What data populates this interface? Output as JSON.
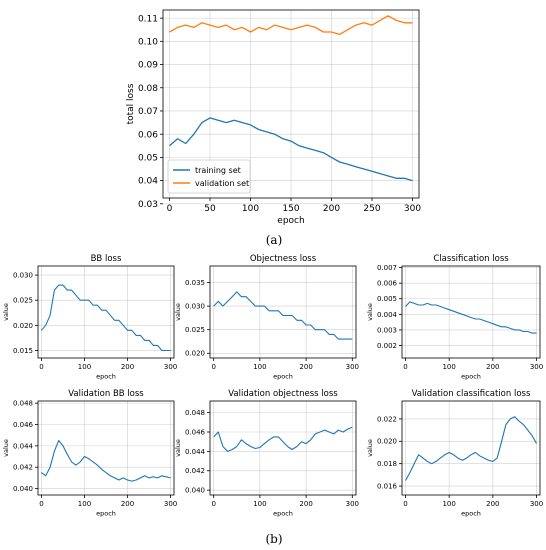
{
  "captions": {
    "a": "(a)",
    "b": "(b)"
  },
  "colors": {
    "training": "#1f77b4",
    "validation": "#ff7f0e",
    "axis": "#000000",
    "grid": "#b0b0b0"
  },
  "chart_data": [
    {
      "id": "main",
      "type": "line",
      "title": "",
      "xlabel": "epoch",
      "ylabel": "total loss",
      "xlim": [
        -8,
        308
      ],
      "ylim": [
        0.0325,
        0.1135
      ],
      "xticks": [
        0,
        50,
        100,
        150,
        200,
        250,
        300
      ],
      "yticks": [
        0.03,
        0.04,
        0.05,
        0.06,
        0.07,
        0.08,
        0.09,
        0.1,
        0.11
      ],
      "ytick_labels": [
        "0.03",
        "0.04",
        "0.05",
        "0.06",
        "0.07",
        "0.08",
        "0.09",
        "0.10",
        "0.11"
      ],
      "grid": true,
      "legend": "lower-left",
      "series": [
        {
          "name": "training set",
          "color": "#1f77b4",
          "x": [
            0,
            10,
            20,
            30,
            40,
            50,
            60,
            70,
            80,
            90,
            100,
            110,
            120,
            130,
            140,
            150,
            160,
            170,
            180,
            190,
            200,
            210,
            220,
            230,
            240,
            250,
            260,
            270,
            280,
            290,
            300
          ],
          "y": [
            0.055,
            0.058,
            0.056,
            0.06,
            0.065,
            0.067,
            0.066,
            0.065,
            0.066,
            0.065,
            0.064,
            0.062,
            0.061,
            0.06,
            0.058,
            0.057,
            0.055,
            0.054,
            0.053,
            0.052,
            0.05,
            0.048,
            0.047,
            0.046,
            0.045,
            0.044,
            0.043,
            0.042,
            0.041,
            0.041,
            0.04
          ]
        },
        {
          "name": "validation set",
          "color": "#ff7f0e",
          "x": [
            0,
            10,
            20,
            30,
            40,
            50,
            60,
            70,
            80,
            90,
            100,
            110,
            120,
            130,
            140,
            150,
            160,
            170,
            180,
            190,
            200,
            210,
            220,
            230,
            240,
            250,
            260,
            270,
            280,
            290,
            300
          ],
          "y": [
            0.104,
            0.106,
            0.107,
            0.106,
            0.108,
            0.107,
            0.106,
            0.107,
            0.105,
            0.106,
            0.104,
            0.106,
            0.105,
            0.107,
            0.106,
            0.105,
            0.106,
            0.107,
            0.106,
            0.104,
            0.104,
            0.103,
            0.105,
            0.107,
            0.108,
            0.107,
            0.109,
            0.111,
            0.109,
            0.108,
            0.108
          ]
        }
      ]
    },
    {
      "id": "bb",
      "type": "line",
      "title": "BB loss",
      "xlabel": "epoch",
      "ylabel": "value",
      "xlim": [
        -8,
        308
      ],
      "ylim": [
        0.0135,
        0.0318
      ],
      "xticks": [
        0,
        100,
        200,
        300
      ],
      "yticks": [
        0.015,
        0.02,
        0.025,
        0.03
      ],
      "ytick_labels": [
        "0.015",
        "0.020",
        "0.025",
        "0.030"
      ],
      "grid": true,
      "series": [
        {
          "color": "#1f77b4",
          "x": [
            0,
            10,
            20,
            30,
            40,
            50,
            60,
            70,
            80,
            90,
            100,
            110,
            120,
            130,
            140,
            150,
            160,
            170,
            180,
            190,
            200,
            210,
            220,
            230,
            240,
            250,
            260,
            270,
            280,
            290,
            300
          ],
          "y": [
            0.019,
            0.02,
            0.022,
            0.027,
            0.028,
            0.028,
            0.027,
            0.027,
            0.026,
            0.025,
            0.025,
            0.025,
            0.024,
            0.024,
            0.023,
            0.023,
            0.022,
            0.021,
            0.021,
            0.02,
            0.019,
            0.019,
            0.018,
            0.018,
            0.017,
            0.017,
            0.016,
            0.016,
            0.015,
            0.015,
            0.015
          ]
        }
      ]
    },
    {
      "id": "obj",
      "type": "line",
      "title": "Objectness loss",
      "xlabel": "epoch",
      "ylabel": "value",
      "xlim": [
        -8,
        308
      ],
      "ylim": [
        0.019,
        0.0385
      ],
      "xticks": [
        0,
        100,
        200,
        300
      ],
      "yticks": [
        0.02,
        0.025,
        0.03,
        0.035
      ],
      "ytick_labels": [
        "0.020",
        "0.025",
        "0.030",
        "0.035"
      ],
      "grid": true,
      "series": [
        {
          "color": "#1f77b4",
          "x": [
            0,
            10,
            20,
            30,
            40,
            50,
            60,
            70,
            80,
            90,
            100,
            110,
            120,
            130,
            140,
            150,
            160,
            170,
            180,
            190,
            200,
            210,
            220,
            230,
            240,
            250,
            260,
            270,
            280,
            290,
            300
          ],
          "y": [
            0.03,
            0.031,
            0.03,
            0.031,
            0.032,
            0.033,
            0.032,
            0.032,
            0.031,
            0.03,
            0.03,
            0.03,
            0.029,
            0.029,
            0.029,
            0.028,
            0.028,
            0.028,
            0.027,
            0.027,
            0.026,
            0.026,
            0.025,
            0.025,
            0.025,
            0.024,
            0.024,
            0.023,
            0.023,
            0.023,
            0.023
          ]
        }
      ]
    },
    {
      "id": "cls",
      "type": "line",
      "title": "Classification loss",
      "xlabel": "epoch",
      "ylabel": "value",
      "xlim": [
        -8,
        308
      ],
      "ylim": [
        0.0012,
        0.0071
      ],
      "xticks": [
        0,
        100,
        200,
        300
      ],
      "yticks": [
        0.002,
        0.003,
        0.004,
        0.005,
        0.006,
        0.007
      ],
      "ytick_labels": [
        "0.002",
        "0.003",
        "0.004",
        "0.005",
        "0.006",
        "0.007"
      ],
      "grid": true,
      "series": [
        {
          "color": "#1f77b4",
          "x": [
            0,
            10,
            20,
            30,
            40,
            50,
            60,
            70,
            80,
            90,
            100,
            110,
            120,
            130,
            140,
            150,
            160,
            170,
            180,
            190,
            200,
            210,
            220,
            230,
            240,
            250,
            260,
            270,
            280,
            290,
            300
          ],
          "y": [
            0.0045,
            0.0048,
            0.0047,
            0.0046,
            0.0046,
            0.0047,
            0.0046,
            0.0046,
            0.0045,
            0.0044,
            0.0043,
            0.0042,
            0.0041,
            0.004,
            0.0039,
            0.0038,
            0.0037,
            0.0037,
            0.0036,
            0.0035,
            0.0034,
            0.0033,
            0.0032,
            0.0032,
            0.0031,
            0.003,
            0.003,
            0.0029,
            0.0029,
            0.0028,
            0.0028
          ]
        }
      ]
    },
    {
      "id": "vbb",
      "type": "line",
      "title": "Validation BB loss",
      "xlabel": "epoch",
      "ylabel": "value",
      "xlim": [
        -8,
        308
      ],
      "ylim": [
        0.0394,
        0.0482
      ],
      "xticks": [
        0,
        100,
        200,
        300
      ],
      "yticks": [
        0.04,
        0.042,
        0.044,
        0.046,
        0.048
      ],
      "ytick_labels": [
        "0.040",
        "0.042",
        "0.044",
        "0.046",
        "0.048"
      ],
      "grid": true,
      "series": [
        {
          "color": "#1f77b4",
          "x": [
            0,
            10,
            20,
            30,
            40,
            50,
            60,
            70,
            80,
            90,
            100,
            110,
            120,
            130,
            140,
            150,
            160,
            170,
            180,
            190,
            200,
            210,
            220,
            230,
            240,
            250,
            260,
            270,
            280,
            290,
            300
          ],
          "y": [
            0.0415,
            0.0412,
            0.042,
            0.0435,
            0.0445,
            0.044,
            0.0432,
            0.0425,
            0.0422,
            0.0425,
            0.043,
            0.0428,
            0.0425,
            0.0422,
            0.0418,
            0.0415,
            0.0412,
            0.041,
            0.0408,
            0.041,
            0.0408,
            0.0407,
            0.0408,
            0.041,
            0.0412,
            0.041,
            0.0411,
            0.041,
            0.0412,
            0.0411,
            0.041
          ]
        }
      ]
    },
    {
      "id": "vobj",
      "type": "line",
      "title": "Validation objectness loss",
      "xlabel": "epoch",
      "ylabel": "value",
      "xlim": [
        -8,
        308
      ],
      "ylim": [
        0.0395,
        0.0492
      ],
      "xticks": [
        0,
        100,
        200,
        300
      ],
      "yticks": [
        0.04,
        0.042,
        0.044,
        0.046,
        0.048
      ],
      "ytick_labels": [
        "0.040",
        "0.042",
        "0.044",
        "0.046",
        "0.048"
      ],
      "grid": true,
      "series": [
        {
          "color": "#1f77b4",
          "x": [
            0,
            10,
            20,
            30,
            40,
            50,
            60,
            70,
            80,
            90,
            100,
            110,
            120,
            130,
            140,
            150,
            160,
            170,
            180,
            190,
            200,
            210,
            220,
            230,
            240,
            250,
            260,
            270,
            280,
            290,
            300
          ],
          "y": [
            0.0455,
            0.046,
            0.0445,
            0.044,
            0.0442,
            0.0445,
            0.0452,
            0.0448,
            0.0445,
            0.0443,
            0.0444,
            0.0448,
            0.0452,
            0.0455,
            0.0455,
            0.045,
            0.0445,
            0.0442,
            0.0445,
            0.045,
            0.0448,
            0.0452,
            0.0458,
            0.046,
            0.0462,
            0.046,
            0.0458,
            0.0462,
            0.046,
            0.0463,
            0.0465
          ]
        }
      ]
    },
    {
      "id": "vcls",
      "type": "line",
      "title": "Validation classification loss",
      "xlabel": "epoch",
      "ylabel": "value",
      "xlim": [
        -8,
        308
      ],
      "ylim": [
        0.0152,
        0.0236
      ],
      "xticks": [
        0,
        100,
        200,
        300
      ],
      "yticks": [
        0.016,
        0.018,
        0.02,
        0.022
      ],
      "ytick_labels": [
        "0.016",
        "0.018",
        "0.020",
        "0.022"
      ],
      "grid": true,
      "series": [
        {
          "color": "#1f77b4",
          "x": [
            0,
            10,
            20,
            30,
            40,
            50,
            60,
            70,
            80,
            90,
            100,
            110,
            120,
            130,
            140,
            150,
            160,
            170,
            180,
            190,
            200,
            210,
            220,
            230,
            240,
            250,
            260,
            270,
            280,
            290,
            300
          ],
          "y": [
            0.0165,
            0.0172,
            0.018,
            0.0188,
            0.0185,
            0.0182,
            0.018,
            0.0182,
            0.0185,
            0.0188,
            0.019,
            0.0188,
            0.0185,
            0.0183,
            0.0185,
            0.0188,
            0.019,
            0.0187,
            0.0185,
            0.0183,
            0.0182,
            0.0185,
            0.02,
            0.0215,
            0.022,
            0.0222,
            0.0218,
            0.0215,
            0.021,
            0.0205,
            0.0198
          ]
        }
      ]
    }
  ]
}
